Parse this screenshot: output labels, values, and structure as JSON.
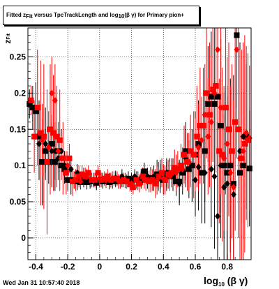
{
  "title": {
    "part1": "Fitted  z",
    "part1_sub": "Fit",
    "part2": " versus TpcTrackLength and log",
    "part2_sub": "10",
    "part3": "(β γ) for Primary pion+"
  },
  "timestamp": "Wed Jan 31 10:57:40 2018",
  "axis_labels": {
    "y_main": "z",
    "y_sub": "Fit",
    "x_main": "log",
    "x_sub": "10",
    "x_tail": "(β γ)"
  },
  "chart_data": {
    "type": "scatter",
    "xlim": [
      -0.45,
      0.95
    ],
    "ylim": [
      -0.03,
      0.29
    ],
    "xticks": [
      "-0.4",
      "-0.2",
      "0",
      "0.2",
      "0.4",
      "0.6",
      "0.8"
    ],
    "xtick_values": [
      -0.4,
      -0.2,
      0,
      0.2,
      0.4,
      0.6,
      0.8
    ],
    "yticks": [
      "0",
      "0.05",
      "0.1",
      "0.15",
      "0.2",
      "0.25"
    ],
    "ytick_values": [
      0,
      0.05,
      0.1,
      0.15,
      0.2,
      0.25
    ],
    "grid": true,
    "colors": {
      "black_series": "#000000",
      "red_series": "#ff0000"
    },
    "series": [
      {
        "marker": "square",
        "color": "#000000",
        "points": [
          [
            -0.44,
            0.185,
            0.02
          ],
          [
            -0.42,
            0.18,
            0.03
          ],
          [
            -0.4,
            0.175,
            0.04
          ],
          [
            -0.38,
            0.14,
            0.05
          ],
          [
            -0.36,
            0.105,
            0.06
          ],
          [
            -0.34,
            0.12,
            0.03
          ],
          [
            -0.32,
            0.105,
            0.03
          ],
          [
            -0.3,
            0.13,
            0.03
          ],
          [
            -0.28,
            0.105,
            0.04
          ],
          [
            -0.26,
            0.12,
            0.03
          ],
          [
            -0.24,
            0.1,
            0.02
          ],
          [
            -0.22,
            0.095,
            0.02
          ],
          [
            -0.2,
            0.08,
            0.015
          ],
          [
            -0.18,
            0.08,
            0.02
          ],
          [
            -0.16,
            0.08,
            0.012
          ],
          [
            -0.14,
            0.078,
            0.012
          ],
          [
            -0.12,
            0.077,
            0.01
          ],
          [
            -0.1,
            0.08,
            0.01
          ],
          [
            -0.08,
            0.077,
            0.01
          ],
          [
            -0.06,
            0.078,
            0.01
          ],
          [
            -0.04,
            0.08,
            0.01
          ],
          [
            -0.02,
            0.076,
            0.01
          ],
          [
            0.0,
            0.08,
            0.01
          ],
          [
            0.02,
            0.078,
            0.01
          ],
          [
            0.04,
            0.079,
            0.01
          ],
          [
            0.06,
            0.077,
            0.01
          ],
          [
            0.08,
            0.078,
            0.01
          ],
          [
            0.1,
            0.08,
            0.01
          ],
          [
            0.12,
            0.078,
            0.01
          ],
          [
            0.14,
            0.08,
            0.01
          ],
          [
            0.16,
            0.079,
            0.01
          ],
          [
            0.18,
            0.082,
            0.01
          ],
          [
            0.2,
            0.08,
            0.01
          ],
          [
            0.22,
            0.082,
            0.01
          ],
          [
            0.24,
            0.08,
            0.012
          ],
          [
            0.26,
            0.08,
            0.012
          ],
          [
            0.28,
            0.092,
            0.012
          ],
          [
            0.3,
            0.08,
            0.012
          ],
          [
            0.32,
            0.083,
            0.015
          ],
          [
            0.34,
            0.08,
            0.015
          ],
          [
            0.36,
            0.088,
            0.02
          ],
          [
            0.38,
            0.082,
            0.02
          ],
          [
            0.4,
            0.08,
            0.02
          ],
          [
            0.42,
            0.085,
            0.02
          ],
          [
            0.44,
            0.09,
            0.02
          ],
          [
            0.46,
            0.085,
            0.02
          ],
          [
            0.48,
            0.078,
            0.02
          ],
          [
            0.5,
            0.078,
            0.03
          ],
          [
            0.52,
            0.09,
            0.03
          ],
          [
            0.54,
            0.12,
            0.04
          ],
          [
            0.56,
            0.095,
            0.04
          ],
          [
            0.58,
            0.1,
            0.05
          ],
          [
            0.6,
            0.115,
            0.06
          ],
          [
            0.62,
            0.13,
            0.06
          ],
          [
            0.64,
            0.09,
            0.07
          ],
          [
            0.66,
            0.12,
            0.07
          ],
          [
            0.68,
            0.185,
            0.08
          ],
          [
            0.7,
            0.195,
            0.09
          ],
          [
            0.72,
            0.185,
            0.1
          ],
          [
            0.74,
            0.195,
            0.1
          ],
          [
            0.76,
            0.155,
            0.12
          ],
          [
            0.78,
            0.1,
            0.1
          ],
          [
            0.8,
            0.09,
            0.12
          ],
          [
            0.82,
            0.1,
            0.12
          ],
          [
            0.84,
            0.075,
            0.15
          ],
          [
            0.86,
            0.28,
            0.1
          ],
          [
            0.88,
            0.09,
            0.15
          ],
          [
            0.9,
            0.1,
            0.1
          ],
          [
            0.92,
            0.14,
            0.1
          ],
          [
            0.94,
            0.096,
            0.08
          ]
        ]
      },
      {
        "marker": "diamond",
        "color": "#000000",
        "points": [
          [
            -0.38,
            0.13,
            0.05
          ],
          [
            -0.34,
            0.13,
            0.05
          ],
          [
            -0.3,
            0.12,
            0.05
          ],
          [
            -0.28,
            0.12,
            0.04
          ],
          [
            -0.26,
            0.11,
            0.03
          ],
          [
            -0.24,
            0.12,
            0.03
          ],
          [
            -0.22,
            0.1,
            0.02
          ],
          [
            -0.18,
            0.095,
            0.015
          ],
          [
            -0.14,
            0.09,
            0.012
          ],
          [
            -0.1,
            0.087,
            0.01
          ],
          [
            -0.06,
            0.08,
            0.01
          ],
          [
            -0.02,
            0.078,
            0.01
          ],
          [
            0.02,
            0.08,
            0.01
          ],
          [
            0.06,
            0.08,
            0.01
          ],
          [
            0.1,
            0.083,
            0.01
          ],
          [
            0.14,
            0.085,
            0.01
          ],
          [
            0.18,
            0.08,
            0.01
          ],
          [
            0.22,
            0.085,
            0.01
          ],
          [
            0.26,
            0.083,
            0.012
          ],
          [
            0.3,
            0.085,
            0.012
          ],
          [
            0.34,
            0.085,
            0.015
          ],
          [
            0.38,
            0.088,
            0.02
          ],
          [
            0.42,
            0.09,
            0.02
          ],
          [
            0.46,
            0.09,
            0.02
          ],
          [
            0.5,
            0.075,
            0.03
          ],
          [
            0.54,
            0.11,
            0.04
          ],
          [
            0.58,
            0.1,
            0.05
          ],
          [
            0.6,
            0.08,
            0.05
          ],
          [
            0.62,
            0.098,
            0.06
          ],
          [
            0.66,
            0.09,
            0.07
          ],
          [
            0.7,
            0.095,
            0.08
          ],
          [
            0.72,
            0.085,
            0.1
          ],
          [
            0.74,
            0.03,
            0.1
          ],
          [
            0.76,
            0.1,
            0.1
          ],
          [
            0.78,
            0.07,
            0.1
          ],
          [
            0.8,
            0.075,
            0.12
          ],
          [
            0.84,
            0.06,
            0.1
          ],
          [
            0.88,
            0.12,
            0.15
          ],
          [
            0.9,
            0.14,
            0.12
          ]
        ]
      },
      {
        "marker": "square",
        "color": "#ff0000",
        "points": [
          [
            -0.43,
            0.19,
            0.02
          ],
          [
            -0.41,
            0.14,
            0.05
          ],
          [
            -0.39,
            0.18,
            0.08
          ],
          [
            -0.37,
            0.145,
            0.1
          ],
          [
            -0.35,
            0.14,
            0.1
          ],
          [
            -0.33,
            0.105,
            0.1
          ],
          [
            -0.31,
            0.15,
            0.09
          ],
          [
            -0.29,
            0.145,
            0.08
          ],
          [
            -0.27,
            0.14,
            0.07
          ],
          [
            -0.25,
            0.135,
            0.07
          ],
          [
            -0.23,
            0.11,
            0.05
          ],
          [
            -0.21,
            0.09,
            0.03
          ],
          [
            -0.19,
            0.11,
            0.02
          ],
          [
            -0.17,
            0.078,
            0.02
          ],
          [
            -0.15,
            0.08,
            0.015
          ],
          [
            -0.13,
            0.085,
            0.015
          ],
          [
            -0.11,
            0.088,
            0.012
          ],
          [
            -0.09,
            0.085,
            0.012
          ],
          [
            -0.07,
            0.09,
            0.01
          ],
          [
            -0.05,
            0.08,
            0.01
          ],
          [
            -0.03,
            0.08,
            0.01
          ],
          [
            -0.01,
            0.09,
            0.01
          ],
          [
            0.01,
            0.08,
            0.01
          ],
          [
            0.03,
            0.082,
            0.01
          ],
          [
            0.05,
            0.085,
            0.01
          ],
          [
            0.07,
            0.08,
            0.01
          ],
          [
            0.09,
            0.082,
            0.01
          ],
          [
            0.11,
            0.082,
            0.01
          ],
          [
            0.13,
            0.078,
            0.01
          ],
          [
            0.15,
            0.08,
            0.01
          ],
          [
            0.17,
            0.078,
            0.01
          ],
          [
            0.19,
            0.074,
            0.01
          ],
          [
            0.21,
            0.07,
            0.01
          ],
          [
            0.23,
            0.08,
            0.012
          ],
          [
            0.25,
            0.075,
            0.012
          ],
          [
            0.27,
            0.085,
            0.012
          ],
          [
            0.29,
            0.08,
            0.015
          ],
          [
            0.31,
            0.078,
            0.015
          ],
          [
            0.33,
            0.08,
            0.015
          ],
          [
            0.35,
            0.075,
            0.02
          ],
          [
            0.37,
            0.085,
            0.02
          ],
          [
            0.39,
            0.09,
            0.02
          ],
          [
            0.41,
            0.08,
            0.02
          ],
          [
            0.43,
            0.088,
            0.02
          ],
          [
            0.45,
            0.09,
            0.02
          ],
          [
            0.47,
            0.097,
            0.025
          ],
          [
            0.49,
            0.095,
            0.025
          ],
          [
            0.51,
            0.1,
            0.03
          ],
          [
            0.53,
            0.115,
            0.04
          ],
          [
            0.55,
            0.105,
            0.04
          ],
          [
            0.57,
            0.12,
            0.05
          ],
          [
            0.59,
            0.115,
            0.06
          ],
          [
            0.61,
            0.14,
            0.07
          ],
          [
            0.63,
            0.155,
            0.08
          ],
          [
            0.65,
            0.155,
            0.08
          ],
          [
            0.67,
            0.2,
            0.09
          ],
          [
            0.69,
            0.17,
            0.1
          ],
          [
            0.71,
            0.205,
            0.1
          ],
          [
            0.73,
            0.21,
            0.12
          ],
          [
            0.75,
            0.12,
            0.1
          ],
          [
            0.77,
            0.115,
            0.12
          ],
          [
            0.79,
            0.18,
            0.12
          ],
          [
            0.81,
            0.15,
            0.12
          ],
          [
            0.83,
            0.12,
            0.12
          ],
          [
            0.85,
            0.16,
            0.15
          ],
          [
            0.87,
            0.15,
            0.15
          ],
          [
            0.89,
            0.11,
            0.15
          ],
          [
            0.91,
            0.13,
            0.15
          ],
          [
            0.93,
            0.135,
            0.12
          ]
        ]
      },
      {
        "marker": "diamond",
        "color": "#ff0000",
        "points": [
          [
            -0.36,
            0.135,
            0.05
          ],
          [
            -0.32,
            0.125,
            0.05
          ],
          [
            -0.3,
            0.2,
            0.05
          ],
          [
            -0.28,
            0.19,
            0.05
          ],
          [
            -0.26,
            0.12,
            0.04
          ],
          [
            -0.24,
            0.11,
            0.03
          ],
          [
            -0.2,
            0.1,
            0.02
          ],
          [
            -0.16,
            0.08,
            0.012
          ],
          [
            -0.12,
            0.078,
            0.01
          ],
          [
            -0.08,
            0.085,
            0.01
          ],
          [
            -0.04,
            0.08,
            0.01
          ],
          [
            0.0,
            0.082,
            0.01
          ],
          [
            0.04,
            0.08,
            0.01
          ],
          [
            0.08,
            0.082,
            0.01
          ],
          [
            0.12,
            0.078,
            0.01
          ],
          [
            0.16,
            0.08,
            0.01
          ],
          [
            0.2,
            0.075,
            0.01
          ],
          [
            0.24,
            0.078,
            0.012
          ],
          [
            0.28,
            0.08,
            0.012
          ],
          [
            0.32,
            0.078,
            0.015
          ],
          [
            0.36,
            0.08,
            0.02
          ],
          [
            0.4,
            0.082,
            0.02
          ],
          [
            0.44,
            0.085,
            0.02
          ],
          [
            0.48,
            0.09,
            0.025
          ],
          [
            0.52,
            0.095,
            0.03
          ],
          [
            0.56,
            0.105,
            0.04
          ],
          [
            0.6,
            0.115,
            0.05
          ],
          [
            0.62,
            0.125,
            0.06
          ],
          [
            0.64,
            0.135,
            0.06
          ],
          [
            0.66,
            0.17,
            0.07
          ],
          [
            0.68,
            0.14,
            0.08
          ],
          [
            0.7,
            0.16,
            0.09
          ],
          [
            0.72,
            0.2,
            0.1
          ],
          [
            0.74,
            0.26,
            0.1
          ],
          [
            0.76,
            0.18,
            0.12
          ],
          [
            0.78,
            0.11,
            0.1
          ],
          [
            0.8,
            0.13,
            0.12
          ],
          [
            0.82,
            0.09,
            0.12
          ],
          [
            0.84,
            0.07,
            0.12
          ],
          [
            0.86,
            0.26,
            0.15
          ],
          [
            0.88,
            0.11,
            0.15
          ],
          [
            0.9,
            0.12,
            0.15
          ],
          [
            0.92,
            0.145,
            0.12
          ],
          [
            0.94,
            0.138,
            0.1
          ]
        ]
      }
    ]
  }
}
